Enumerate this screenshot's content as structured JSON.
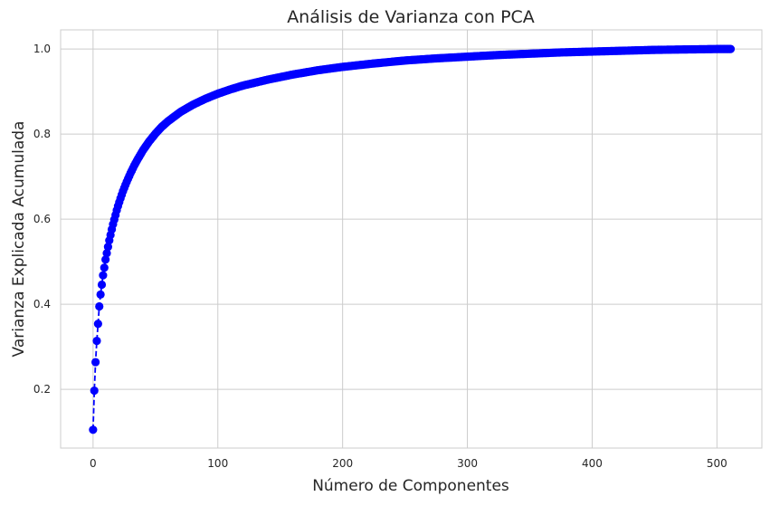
{
  "chart_data": {
    "type": "line",
    "title": "Análisis de Varianza con PCA",
    "xlabel": "Número de Componentes",
    "ylabel": "Varianza Explicada Acumulada",
    "xlim": [
      -26,
      536
    ],
    "ylim": [
      0.062,
      1.045
    ],
    "xticks": [
      0,
      100,
      200,
      300,
      400,
      500
    ],
    "yticks": [
      0.2,
      0.4,
      0.6,
      0.8,
      1.0
    ],
    "xtick_labels": [
      "0",
      "100",
      "200",
      "300",
      "400",
      "500"
    ],
    "ytick_labels": [
      "0.2",
      "0.4",
      "0.6",
      "0.8",
      "1.0"
    ],
    "grid": true,
    "legend": false,
    "series": [
      {
        "color": "#0000ff",
        "line_style": "dashed",
        "marker": "circle",
        "x": [
          0,
          1,
          2,
          3,
          4,
          5,
          6,
          7,
          8,
          9,
          10,
          11,
          12,
          13,
          14,
          15,
          16,
          17,
          18,
          19,
          20,
          22,
          24,
          26,
          28,
          30,
          33,
          36,
          40,
          45,
          50,
          55,
          60,
          70,
          80,
          90,
          100,
          110,
          120,
          130,
          140,
          150,
          160,
          170,
          180,
          190,
          200,
          225,
          250,
          275,
          300,
          325,
          350,
          375,
          400,
          425,
          450,
          475,
          500,
          511
        ],
        "y": [
          0.105,
          0.197,
          0.264,
          0.314,
          0.354,
          0.395,
          0.423,
          0.446,
          0.468,
          0.486,
          0.505,
          0.52,
          0.535,
          0.55,
          0.563,
          0.576,
          0.588,
          0.599,
          0.61,
          0.621,
          0.631,
          0.649,
          0.666,
          0.681,
          0.695,
          0.708,
          0.726,
          0.742,
          0.762,
          0.783,
          0.801,
          0.817,
          0.83,
          0.852,
          0.869,
          0.883,
          0.895,
          0.905,
          0.914,
          0.921,
          0.928,
          0.934,
          0.94,
          0.945,
          0.95,
          0.954,
          0.958,
          0.966,
          0.973,
          0.978,
          0.982,
          0.986,
          0.989,
          0.992,
          0.994,
          0.996,
          0.998,
          0.999,
          1.0,
          1.0
        ]
      }
    ]
  }
}
